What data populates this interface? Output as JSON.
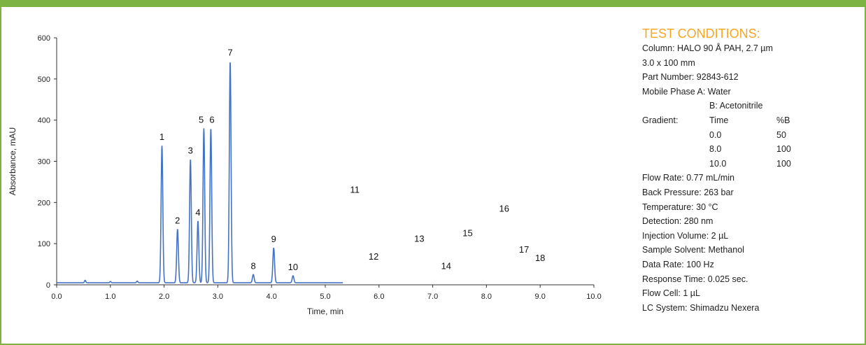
{
  "colors": {
    "border": "#7cb342",
    "heading": "#f5a623",
    "trace": "#4472c4",
    "axis": "#333333"
  },
  "chart_data": {
    "type": "line",
    "xlabel": "Time, min",
    "ylabel": "Absorbance, mAU",
    "xlim": [
      0,
      10
    ],
    "ylim": [
      0,
      600
    ],
    "xticks": [
      "0.0",
      "1.0",
      "2.0",
      "3.0",
      "4.0",
      "5.0",
      "6.0",
      "7.0",
      "8.0",
      "9.0",
      "10.0"
    ],
    "yticks": [
      "0",
      "100",
      "200",
      "300",
      "400",
      "500",
      "600"
    ],
    "grid": false,
    "baseline": 5,
    "trace_end_x": 5.33,
    "minor_peaks": [
      {
        "x": 0.53,
        "y": 11
      },
      {
        "x": 1.0,
        "y": 8
      },
      {
        "x": 1.5,
        "y": 9
      }
    ],
    "peaks": [
      {
        "label": "1",
        "x": 1.96,
        "y": 338
      },
      {
        "label": "2",
        "x": 2.25,
        "y": 135
      },
      {
        "label": "3",
        "x": 2.49,
        "y": 305
      },
      {
        "label": "4",
        "x": 2.63,
        "y": 155
      },
      {
        "label": "5",
        "x": 2.74,
        "y": 380
      },
      {
        "label": "6",
        "x": 2.87,
        "y": 380
      },
      {
        "label": "7",
        "x": 3.23,
        "y": 543
      },
      {
        "label": "8",
        "x": 3.66,
        "y": 25
      },
      {
        "label": "9",
        "x": 4.04,
        "y": 90
      },
      {
        "label": "10",
        "x": 4.4,
        "y": 22
      }
    ],
    "floating_labels": [
      {
        "label": "11",
        "x": 5.55,
        "y": 232
      },
      {
        "label": "12",
        "x": 5.9,
        "y": 70
      },
      {
        "label": "13",
        "x": 6.75,
        "y": 113
      },
      {
        "label": "14",
        "x": 7.25,
        "y": 47
      },
      {
        "label": "15",
        "x": 7.65,
        "y": 127
      },
      {
        "label": "16",
        "x": 8.33,
        "y": 186
      },
      {
        "label": "17",
        "x": 8.7,
        "y": 87
      },
      {
        "label": "18",
        "x": 9.0,
        "y": 66
      }
    ]
  },
  "conditions": {
    "heading": "TEST CONDITIONS:",
    "column": "Column:  HALO 90 Å PAH, 2.7 µm",
    "column_dims": "3.0 x 100 mm",
    "part_number": "Part Number:   92843-612",
    "mobile_phase_a": "Mobile Phase A:   Water",
    "mobile_phase_b": "B:  Acetonitrile",
    "gradient_label": "Gradient:",
    "gradient_time_header": "Time",
    "gradient_b_header": "%B",
    "gradient_rows": [
      {
        "time": "0.0",
        "b": "50"
      },
      {
        "time": "8.0",
        "b": "100"
      },
      {
        "time": "10.0",
        "b": "100"
      }
    ],
    "flow_rate": "Flow Rate:   0.77 mL/min",
    "back_pressure": "Back Pressure:    263 bar",
    "temperature": "Temperature:   30 °C",
    "detection": "Detection:   280 nm",
    "injection_volume": "Injection Volume:   2 µL",
    "sample_solvent": "Sample Solvent:    Methanol",
    "data_rate": "Data Rate:    100 Hz",
    "response_time": "Response Time:    0.025 sec.",
    "flow_cell": "Flow Cell:   1 µL",
    "lc_system": "LC System:   Shimadzu Nexera"
  }
}
